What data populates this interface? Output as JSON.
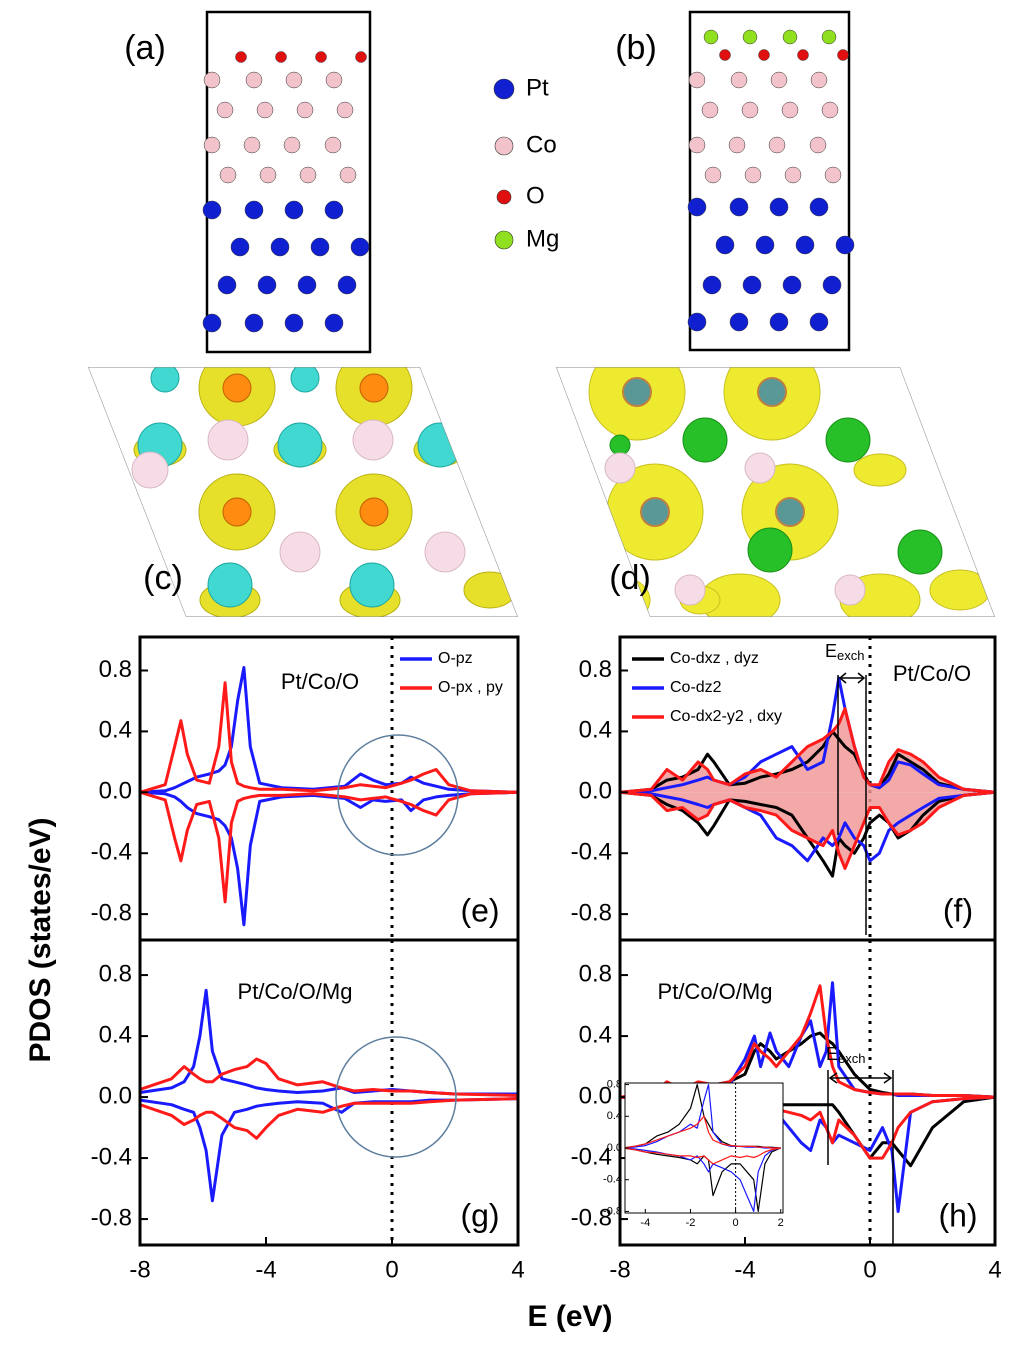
{
  "figure": {
    "panels": [
      "(a)",
      "(b)",
      "(c)",
      "(d)"
    ],
    "legend": [
      {
        "label": "Pt",
        "color": "#1020d0"
      },
      {
        "label": "Co",
        "color": "#f3c3cb"
      },
      {
        "label": "O",
        "color": "#e01010"
      },
      {
        "label": "Mg",
        "color": "#90e020"
      }
    ],
    "ylabel": "PDOS (states/eV)",
    "xlabel": "E (eV)",
    "exch": {
      "main": "E",
      "sub": "exch"
    }
  },
  "chart_data": [
    {
      "type": "line",
      "text": "Pt/Co/O",
      "label": "(e)",
      "legend": "upper right",
      "xlim": [
        -8,
        4
      ],
      "ylim": [
        -0.97,
        1.02
      ],
      "yticks": [
        0.8,
        0.4,
        {
          "value": 0,
          "label": "0.0"
        },
        -0.4,
        -0.8
      ],
      "vline": 0,
      "x": [
        -8,
        -7.2,
        -6.9,
        -6.7,
        -6.5,
        -6.2,
        -5.8,
        -5.5,
        -5.3,
        -5.1,
        -4.9,
        -4.7,
        -4.5,
        -4.2,
        -3.5,
        -2.5,
        -1.5,
        -1,
        -0.6,
        -0.2,
        0.3,
        0.6,
        1,
        1.4,
        1.8,
        2.5,
        4
      ],
      "series": [
        {
          "name": "O-pz",
          "color": "#1a1aff",
          "values": [
            0,
            0.01,
            0.03,
            0.05,
            0.07,
            0.1,
            0.12,
            0.14,
            0.18,
            0.3,
            0.6,
            0.82,
            0.3,
            0.06,
            0.03,
            0.02,
            0.04,
            0.12,
            0.08,
            0.05,
            0.06,
            0.1,
            0.06,
            0.04,
            0.02,
            0.01,
            0
          ],
          "down": [
            0,
            -0.01,
            -0.03,
            -0.06,
            -0.1,
            -0.14,
            -0.16,
            -0.18,
            -0.22,
            -0.3,
            -0.5,
            -0.87,
            -0.35,
            -0.06,
            -0.03,
            -0.02,
            -0.04,
            -0.1,
            -0.05,
            -0.06,
            -0.05,
            -0.12,
            -0.05,
            -0.03,
            -0.02,
            -0.01,
            0
          ]
        },
        {
          "name": "O-px , py",
          "color": "#ff1a1a",
          "values": [
            0,
            0.05,
            0.3,
            0.47,
            0.25,
            0.08,
            0.06,
            0.3,
            0.72,
            0.2,
            0.06,
            0.04,
            0.03,
            0.02,
            0.02,
            0.01,
            0.03,
            0.05,
            0.04,
            0.03,
            0.06,
            0.08,
            0.12,
            0.15,
            0.05,
            0.01,
            0
          ],
          "down": [
            0,
            -0.05,
            -0.3,
            -0.45,
            -0.25,
            -0.08,
            -0.06,
            -0.3,
            -0.72,
            -0.2,
            -0.06,
            -0.04,
            -0.03,
            -0.02,
            -0.02,
            -0.01,
            -0.03,
            -0.05,
            -0.04,
            -0.03,
            -0.06,
            -0.08,
            -0.12,
            -0.15,
            -0.05,
            -0.01,
            0
          ]
        }
      ]
    },
    {
      "type": "line",
      "text": "Pt/Co/O",
      "label": "(f)",
      "legend": "upper left",
      "xlim": [
        -8,
        4
      ],
      "ylim": [
        -0.97,
        1.02
      ],
      "yticks": [
        0.8,
        0.4,
        {
          "value": 0,
          "label": "0.0"
        },
        -0.4,
        -0.8
      ],
      "vline": 0,
      "x": [
        -8,
        -7,
        -6.5,
        -6,
        -5.5,
        -5.2,
        -5,
        -4.5,
        -4,
        -3.5,
        -3,
        -2.5,
        -2,
        -1.5,
        -1.2,
        -1,
        -0.8,
        -0.5,
        -0.2,
        0,
        0.3,
        0.6,
        0.9,
        1.3,
        1.7,
        2.2,
        3,
        4
      ],
      "series": [
        {
          "name": "Co-dxz , dyz",
          "color": "#000000",
          "values": [
            0,
            0.02,
            0.08,
            0.1,
            0.15,
            0.25,
            0.2,
            0.05,
            0.06,
            0.1,
            0.12,
            0.15,
            0.2,
            0.3,
            0.4,
            0.35,
            0.3,
            0.25,
            0.12,
            0.05,
            0.03,
            0.12,
            0.25,
            0.2,
            0.15,
            0.06,
            0.02,
            0
          ],
          "down": [
            0,
            -0.02,
            -0.08,
            -0.12,
            -0.2,
            -0.28,
            -0.22,
            -0.05,
            -0.06,
            -0.08,
            -0.1,
            -0.15,
            -0.3,
            -0.45,
            -0.55,
            -0.3,
            -0.35,
            -0.4,
            -0.3,
            -0.2,
            -0.15,
            -0.2,
            -0.3,
            -0.25,
            -0.15,
            -0.06,
            -0.02,
            0
          ]
        },
        {
          "name": "Co-dz2",
          "color": "#1a1aff",
          "values": [
            0,
            0.01,
            0.03,
            0.05,
            0.08,
            0.1,
            0.08,
            0.05,
            0.1,
            0.2,
            0.25,
            0.3,
            0.15,
            0.2,
            0.5,
            0.75,
            0.55,
            0.3,
            0.1,
            0.05,
            0.03,
            0.08,
            0.2,
            0.18,
            0.12,
            0.05,
            0.02,
            0
          ],
          "down": [
            0,
            -0.01,
            -0.03,
            -0.05,
            -0.08,
            -0.1,
            -0.08,
            -0.05,
            -0.1,
            -0.15,
            -0.3,
            -0.35,
            -0.45,
            -0.3,
            -0.35,
            -0.3,
            -0.2,
            -0.3,
            -0.35,
            -0.45,
            -0.4,
            -0.25,
            -0.2,
            -0.15,
            -0.1,
            -0.04,
            -0.02,
            0
          ]
        },
        {
          "name": "Co-dx2-y2 , dxy",
          "color": "#ff1a1a",
          "fill": "#f29a9a",
          "values": [
            0,
            0.02,
            0.15,
            0.08,
            0.2,
            0.15,
            0.08,
            0.05,
            0.12,
            0.15,
            0.1,
            0.2,
            0.3,
            0.35,
            0.4,
            0.45,
            0.55,
            0.3,
            0.1,
            0.05,
            0.05,
            0.2,
            0.28,
            0.25,
            0.2,
            0.1,
            0.02,
            0
          ],
          "down": [
            0,
            -0.02,
            -0.12,
            -0.1,
            -0.18,
            -0.15,
            -0.08,
            -0.05,
            -0.1,
            -0.12,
            -0.15,
            -0.25,
            -0.3,
            -0.35,
            -0.25,
            -0.4,
            -0.5,
            -0.35,
            -0.2,
            -0.1,
            -0.1,
            -0.2,
            -0.28,
            -0.25,
            -0.2,
            -0.1,
            -0.02,
            0
          ]
        }
      ]
    },
    {
      "type": "line",
      "text": "Pt/Co/O/Mg",
      "label": "(g)",
      "xlim": [
        -8,
        4
      ],
      "ylim": [
        -0.97,
        1.03
      ],
      "xticks": [
        -8,
        -4,
        0,
        4
      ],
      "yticks": [
        0.8,
        0.4,
        {
          "value": 0,
          "label": "0.0"
        },
        -0.4,
        -0.8
      ],
      "vline": 0,
      "x": [
        -8,
        -7,
        -6.6,
        -6.3,
        -6.1,
        -5.9,
        -5.7,
        -5.4,
        -5,
        -4.6,
        -4.3,
        -4,
        -3.6,
        -3,
        -2.2,
        -1.6,
        -1.2,
        -0.6,
        0,
        0.6,
        1.2,
        2,
        4
      ],
      "series": [
        {
          "color": "#1a1aff",
          "values": [
            0.03,
            0.06,
            0.1,
            0.2,
            0.4,
            0.7,
            0.3,
            0.12,
            0.1,
            0.08,
            0.06,
            0.05,
            0.04,
            0.03,
            0.04,
            0.06,
            0.03,
            0.04,
            0.05,
            0.04,
            0.03,
            0.02,
            0.02
          ],
          "down": [
            -0.02,
            -0.05,
            -0.08,
            -0.1,
            -0.2,
            -0.35,
            -0.68,
            -0.25,
            -0.1,
            -0.08,
            -0.06,
            -0.05,
            -0.04,
            -0.03,
            -0.04,
            -0.1,
            -0.04,
            -0.03,
            -0.03,
            -0.03,
            -0.02,
            -0.02,
            -0.01
          ]
        },
        {
          "color": "#ff1a1a",
          "values": [
            0.05,
            0.12,
            0.2,
            0.15,
            0.12,
            0.1,
            0.1,
            0.15,
            0.18,
            0.2,
            0.25,
            0.22,
            0.12,
            0.08,
            0.1,
            0.06,
            0.04,
            0.05,
            0.04,
            0.04,
            0.03,
            0.02,
            0.01
          ],
          "down": [
            -0.05,
            -0.12,
            -0.18,
            -0.15,
            -0.12,
            -0.1,
            -0.1,
            -0.14,
            -0.2,
            -0.22,
            -0.27,
            -0.2,
            -0.12,
            -0.08,
            -0.1,
            -0.06,
            -0.04,
            -0.04,
            -0.04,
            -0.04,
            -0.03,
            -0.02,
            -0.01
          ]
        }
      ]
    },
    {
      "type": "line",
      "text": "Pt/Co/O/Mg",
      "label": "(h)",
      "xlim": [
        -8,
        4
      ],
      "ylim": [
        -0.97,
        1.03
      ],
      "xticks": [
        -8,
        -4,
        0,
        4
      ],
      "yticks": [
        0.8,
        0.4,
        {
          "value": 0,
          "label": "0.0"
        },
        -0.4,
        -0.8
      ],
      "vline": 0,
      "x": [
        -8,
        -7,
        -6.5,
        -6,
        -5.5,
        -5,
        -4.5,
        -4,
        -3.7,
        -3.5,
        -3.2,
        -3,
        -2.6,
        -2.2,
        -1.9,
        -1.6,
        -1.4,
        -1.2,
        -1,
        -0.5,
        0,
        0.4,
        0.7,
        0.9,
        1.3,
        2,
        3,
        4
      ],
      "series": [
        {
          "color": "#000000",
          "values": [
            0,
            0.01,
            0.02,
            0.03,
            0.05,
            0.08,
            0.1,
            0.15,
            0.3,
            0.35,
            0.3,
            0.25,
            0.3,
            0.35,
            0.4,
            0.42,
            0.38,
            0.35,
            0.3,
            0.15,
            0.05,
            0.03,
            0.02,
            0.02,
            0.02,
            0.01,
            0.01,
            0
          ],
          "down": [
            0,
            -0.01,
            -0.02,
            -0.03,
            -0.05,
            -0.05,
            -0.05,
            -0.05,
            -0.05,
            -0.05,
            -0.05,
            -0.05,
            -0.05,
            -0.05,
            -0.05,
            -0.05,
            -0.05,
            -0.05,
            -0.1,
            -0.25,
            -0.4,
            -0.3,
            -0.3,
            -0.35,
            -0.45,
            -0.2,
            -0.03,
            0
          ]
        },
        {
          "color": "#1a1aff",
          "values": [
            0,
            0.01,
            0.02,
            0.03,
            0.04,
            0.05,
            0.08,
            0.25,
            0.4,
            0.2,
            0.42,
            0.3,
            0.2,
            0.4,
            0.5,
            0.2,
            0.3,
            0.75,
            0.2,
            0.05,
            0.03,
            0.02,
            0.02,
            0.01,
            0.01,
            0.01,
            0.01,
            0
          ],
          "down": [
            0,
            -0.01,
            -0.02,
            -0.03,
            -0.03,
            -0.04,
            -0.05,
            -0.1,
            -0.3,
            -0.15,
            -0.3,
            -0.1,
            -0.2,
            -0.3,
            -0.35,
            -0.15,
            -0.2,
            -0.3,
            -0.25,
            -0.3,
            -0.35,
            -0.2,
            -0.35,
            -0.75,
            -0.1,
            -0.03,
            -0.01,
            0
          ]
        },
        {
          "color": "#ff1a1a",
          "values": [
            0,
            0.02,
            0.1,
            0.05,
            0.1,
            0.08,
            0.1,
            0.2,
            0.35,
            0.3,
            0.25,
            0.2,
            0.3,
            0.4,
            0.55,
            0.73,
            0.4,
            0.2,
            0.1,
            0.05,
            0.03,
            0.02,
            0.02,
            0.02,
            0.02,
            0.01,
            0.01,
            0
          ],
          "down": [
            0,
            -0.02,
            -0.05,
            -0.05,
            -0.05,
            -0.05,
            -0.05,
            -0.05,
            -0.05,
            -0.1,
            -0.1,
            -0.08,
            -0.1,
            -0.12,
            -0.15,
            -0.1,
            -0.2,
            -0.3,
            -0.15,
            -0.25,
            -0.4,
            -0.4,
            -0.3,
            -0.2,
            -0.1,
            -0.03,
            -0.01,
            0
          ]
        }
      ]
    },
    {
      "type": "line",
      "xlim": [
        -4.9,
        2.1
      ],
      "ylim": [
        -0.82,
        0.82
      ],
      "xticks": [
        -4,
        -2,
        0,
        2
      ],
      "yticks": [
        0.8,
        0.4,
        {
          "value": 0,
          "label": "0.0"
        },
        -0.4,
        -0.8
      ],
      "vline": 0,
      "x": [
        -5,
        -4.5,
        -4,
        -3.5,
        -3,
        -2.5,
        -2,
        -1.7,
        -1.4,
        -1.2,
        -1,
        -0.6,
        -0.2,
        0.2,
        0.5,
        0.8,
        1,
        1.3,
        1.6,
        2
      ],
      "series": [
        {
          "color": "#000000",
          "values": [
            0,
            0.02,
            0.05,
            0.15,
            0.2,
            0.3,
            0.5,
            0.8,
            0.4,
            0.3,
            0.2,
            0.08,
            0.03,
            0.02,
            0.02,
            0.02,
            0.02,
            0.01,
            0.01,
            0
          ],
          "down": [
            0,
            -0.02,
            -0.05,
            -0.08,
            -0.1,
            -0.12,
            -0.15,
            -0.2,
            -0.1,
            -0.15,
            -0.6,
            -0.3,
            -0.2,
            -0.2,
            -0.3,
            -0.4,
            -0.8,
            -0.2,
            -0.05,
            0
          ]
        },
        {
          "color": "#1a1aff",
          "values": [
            0,
            0.01,
            0.03,
            0.08,
            0.15,
            0.2,
            0.3,
            0.25,
            0.6,
            0.8,
            0.2,
            0.05,
            0.02,
            0.02,
            0.01,
            0.01,
            0.01,
            0,
            0,
            0
          ],
          "down": [
            0,
            -0.01,
            -0.03,
            -0.05,
            -0.08,
            -0.1,
            -0.15,
            -0.1,
            -0.2,
            -0.3,
            -0.2,
            -0.25,
            -0.3,
            -0.4,
            -0.6,
            -0.8,
            -0.3,
            -0.1,
            -0.03,
            0
          ]
        },
        {
          "color": "#ff1a1a",
          "values": [
            0,
            0.02,
            0.05,
            0.1,
            0.15,
            0.2,
            0.25,
            0.3,
            0.4,
            0.2,
            0.1,
            0.05,
            0.03,
            0.02,
            0.02,
            0.02,
            0.01,
            0.01,
            0,
            0
          ],
          "down": [
            0,
            -0.02,
            -0.05,
            -0.06,
            -0.08,
            -0.1,
            -0.1,
            -0.12,
            -0.1,
            -0.15,
            -0.2,
            -0.15,
            -0.1,
            -0.12,
            -0.1,
            -0.12,
            -0.1,
            -0.05,
            -0.02,
            0
          ]
        }
      ]
    }
  ]
}
